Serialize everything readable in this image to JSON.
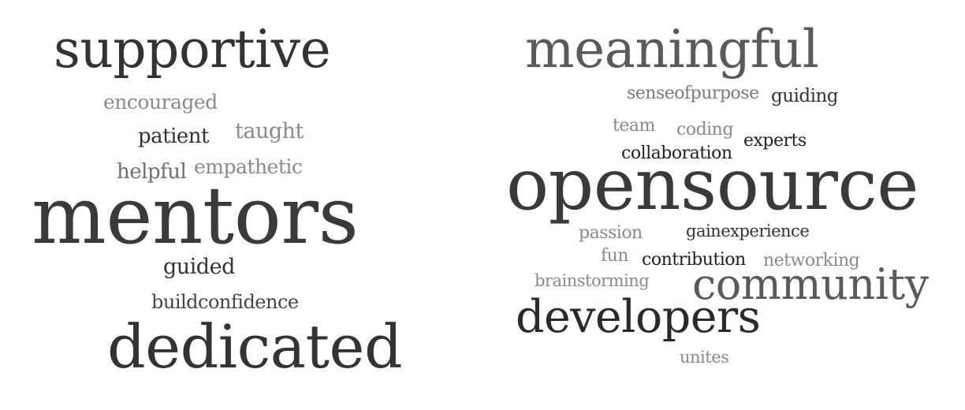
{
  "clouds": [
    {
      "words": [
        {
          "text": "supportive",
          "color": "#333333"
        },
        {
          "text": "encouraged",
          "color": "#8a8a8a"
        },
        {
          "text": "patient",
          "color": "#333333"
        },
        {
          "text": "taught",
          "color": "#8a8a8a"
        },
        {
          "text": "helpful",
          "color": "#6e6e6e"
        },
        {
          "text": "empathetic",
          "color": "#8a8a8a"
        },
        {
          "text": "mentors",
          "color": "#3a3a3a"
        },
        {
          "text": "guided",
          "color": "#333333"
        },
        {
          "text": "buildconfidence",
          "color": "#444444"
        },
        {
          "text": "dedicated",
          "color": "#333333"
        }
      ]
    },
    {
      "words": [
        {
          "text": "meaningful",
          "color": "#5a5a5a"
        },
        {
          "text": "senseofpurpose",
          "color": "#7a7a7a"
        },
        {
          "text": "guiding",
          "color": "#333333"
        },
        {
          "text": "team",
          "color": "#8a8a8a"
        },
        {
          "text": "coding",
          "color": "#8a8a8a"
        },
        {
          "text": "experts",
          "color": "#1f1f1f"
        },
        {
          "text": "collaboration",
          "color": "#1f1f1f"
        },
        {
          "text": "opensource",
          "color": "#3a3a3a"
        },
        {
          "text": "passion",
          "color": "#8a8a8a"
        },
        {
          "text": "gainexperience",
          "color": "#333333"
        },
        {
          "text": "fun",
          "color": "#8a8a8a"
        },
        {
          "text": "contribution",
          "color": "#1f1f1f"
        },
        {
          "text": "networking",
          "color": "#8a8a8a"
        },
        {
          "text": "brainstorming",
          "color": "#8a8a8a"
        },
        {
          "text": "community",
          "color": "#5a5a5a"
        },
        {
          "text": "developers",
          "color": "#2a2a2a"
        },
        {
          "text": "unites",
          "color": "#8a8a8a"
        }
      ]
    }
  ]
}
